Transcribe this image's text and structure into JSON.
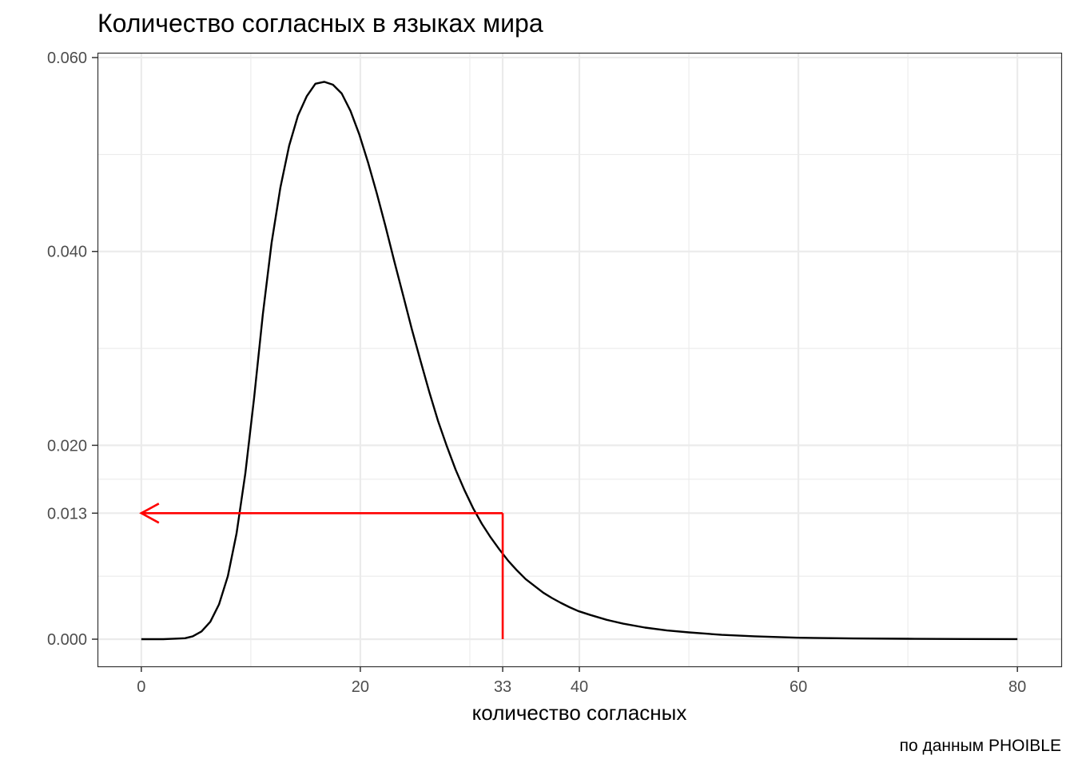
{
  "chart_data": {
    "type": "line",
    "title": "Количество согласных в языках мира",
    "xlabel": "количество согласных",
    "ylabel": "",
    "caption": "по данным PHOIBLE",
    "xlim": [
      -4,
      84
    ],
    "ylim": [
      -0.0028,
      0.0605
    ],
    "x_ticks": [
      0,
      20,
      33,
      40,
      60,
      80
    ],
    "x_tick_labels": [
      "0",
      "20",
      "33",
      "40",
      "60",
      "80"
    ],
    "x_minor_grid": [
      10,
      30,
      50,
      70
    ],
    "y_ticks": [
      0.0,
      0.013,
      0.02,
      0.04,
      0.06
    ],
    "y_tick_labels": [
      "0.000",
      "0.013",
      "0.020",
      "0.040",
      "0.060"
    ],
    "y_minor_grid": [
      0.0065,
      0.0165,
      0.03,
      0.05
    ],
    "grid": true,
    "series": [
      {
        "x": [
          0,
          2,
          3,
          4,
          4.7,
          5.5,
          6.3,
          7.1,
          7.9,
          8.7,
          9.5,
          10.3,
          11.1,
          11.9,
          12.7,
          13.5,
          14.3,
          15.1,
          15.9,
          16.7,
          17.5,
          18.3,
          19.1,
          19.9,
          20.7,
          21.5,
          22.3,
          23.1,
          23.9,
          24.7,
          25.5,
          26.3,
          27.1,
          27.9,
          28.7,
          29.5,
          30.3,
          31.1,
          31.9,
          32.7,
          33.5,
          34.3,
          35.1,
          35.9,
          36.7,
          37.5,
          38.3,
          39.1,
          39.9,
          41,
          42.5,
          44,
          46,
          48,
          50,
          53,
          56,
          60,
          65,
          70,
          75,
          80
        ],
        "y": [
          0.0,
          0.0,
          5e-05,
          0.0001,
          0.0003,
          0.0008,
          0.0018,
          0.0036,
          0.0065,
          0.0109,
          0.0171,
          0.0249,
          0.0335,
          0.0409,
          0.0466,
          0.0509,
          0.054,
          0.056,
          0.0573,
          0.0575,
          0.0572,
          0.0563,
          0.0545,
          0.0521,
          0.0492,
          0.046,
          0.0426,
          0.039,
          0.0355,
          0.032,
          0.0287,
          0.0255,
          0.0225,
          0.0199,
          0.0175,
          0.0154,
          0.0135,
          0.0119,
          0.0105,
          0.00925,
          0.0081,
          0.0071,
          0.0062,
          0.0055,
          0.0048,
          0.00425,
          0.00375,
          0.0033,
          0.0029,
          0.0025,
          0.002,
          0.0016,
          0.0012,
          0.0009,
          0.0007,
          0.00045,
          0.0003,
          0.00015,
          8e-05,
          4e-05,
          2e-05,
          1e-05
        ],
        "color": "#000000"
      }
    ],
    "annotation": {
      "x": 33,
      "y": 0.013,
      "arrow_to_x": 0,
      "color": "#ff0000"
    }
  }
}
